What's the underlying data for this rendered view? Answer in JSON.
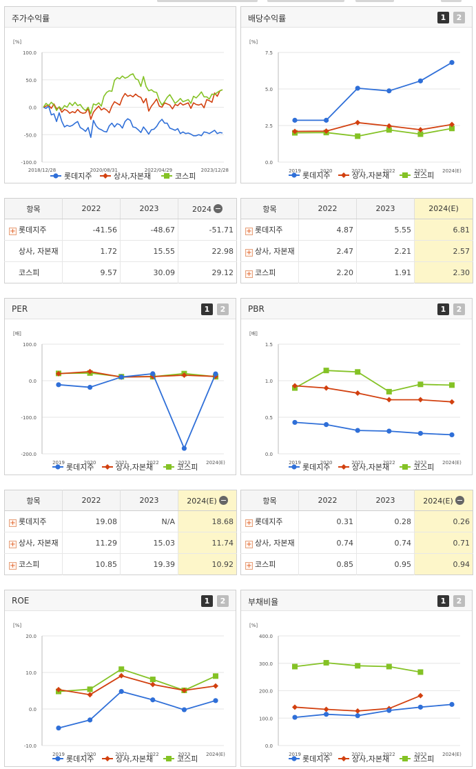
{
  "colors": {
    "lotte": "#2f6fd8",
    "trading": "#d2400f",
    "kospi": "#84c225"
  },
  "series_names": [
    "롯데지주",
    "상사,자본재",
    "코스피"
  ],
  "panels": [
    {
      "id": "stock-return",
      "title": "주가수익률",
      "pager": false,
      "chart_data": {
        "type": "line",
        "unit": "[%]",
        "yticks": [
          "100.0",
          "50.0",
          "0.0",
          "-50.0",
          "-100.0"
        ],
        "ylim": [
          -100,
          100
        ],
        "xtick_labels": [
          "2018/12/28",
          "2020/08/31",
          "2022/04/29",
          "2023/12/28"
        ],
        "x": [
          0,
          4,
          8,
          12,
          16,
          20,
          24,
          28,
          32,
          36,
          40,
          44,
          48,
          52,
          56,
          60,
          64,
          68,
          72,
          76,
          80,
          84,
          88,
          92,
          96,
          100,
          104,
          108,
          112,
          116,
          120,
          124,
          128,
          132,
          136,
          140,
          144,
          148,
          152,
          156,
          160,
          164,
          168,
          172,
          176,
          180,
          184,
          188,
          192,
          196,
          200,
          204,
          208,
          212,
          216,
          220,
          224,
          228,
          232,
          236,
          240,
          244,
          248,
          252,
          256,
          260,
          264,
          268,
          272
        ],
        "series": [
          {
            "name": "롯데지주",
            "values": [
              0,
              -2,
              2,
              -14,
              -12,
              -26,
              -10,
              -26,
              -36,
              -33,
              -35,
              -33,
              -29,
              -26,
              -37,
              -40,
              -44,
              -37,
              -55,
              -24,
              -34,
              -39,
              -41,
              -44,
              -45,
              -34,
              -29,
              -36,
              -30,
              -32,
              -38,
              -26,
              -21,
              -24,
              -36,
              -37,
              -41,
              -46,
              -36,
              -42,
              -49,
              -41,
              -40,
              -35,
              -27,
              -22,
              -29,
              -29,
              -38,
              -40,
              -42,
              -39,
              -48,
              -45,
              -48,
              -47,
              -49,
              -52,
              -52,
              -50,
              -52,
              -45,
              -46,
              -48,
              -45,
              -42,
              -48,
              -46,
              -47
            ]
          },
          {
            "name": "상사,자본재",
            "values": [
              0,
              2,
              4,
              -2,
              6,
              -3,
              0,
              -9,
              -4,
              -6,
              -11,
              -8,
              -10,
              -4,
              -9,
              -11,
              -10,
              -2,
              -22,
              -9,
              -3,
              2,
              -5,
              -2,
              -5,
              -10,
              2,
              10,
              7,
              4,
              17,
              25,
              20,
              22,
              19,
              24,
              20,
              18,
              8,
              16,
              -7,
              2,
              8,
              15,
              2,
              0,
              8,
              6,
              4,
              -3,
              5,
              3,
              8,
              4,
              6,
              8,
              -2,
              8,
              5,
              4,
              6,
              -1,
              14,
              12,
              9,
              26,
              20,
              30,
              32
            ]
          },
          {
            "name": "코스피",
            "values": [
              0,
              7,
              3,
              9,
              4,
              -6,
              1,
              -4,
              3,
              0,
              8,
              3,
              9,
              3,
              5,
              -2,
              -6,
              0,
              -12,
              6,
              4,
              8,
              2,
              20,
              27,
              30,
              29,
              49,
              54,
              52,
              57,
              53,
              55,
              59,
              61,
              52,
              50,
              38,
              56,
              38,
              30,
              32,
              28,
              27,
              13,
              4,
              10,
              18,
              23,
              15,
              7,
              11,
              16,
              10,
              12,
              14,
              7,
              20,
              17,
              22,
              28,
              19,
              19,
              15,
              24,
              23,
              27,
              30,
              32
            ]
          }
        ]
      }
    },
    {
      "id": "dividend-yield",
      "title": "배당수익률",
      "pager": true,
      "chart_data": {
        "type": "line",
        "unit": "[%]",
        "yticks": [
          "7.5",
          "5.0",
          "2.5",
          "0.0"
        ],
        "ylim": [
          0,
          7.5
        ],
        "categories": [
          "2019",
          "2020",
          "2021",
          "2022",
          "2023",
          "2024(E)"
        ],
        "series": [
          {
            "name": "롯데지주",
            "values": [
              2.86,
              2.86,
              5.05,
              4.87,
              5.55,
              6.81
            ]
          },
          {
            "name": "상사,자본재",
            "values": [
              2.1,
              2.12,
              2.7,
              2.47,
              2.21,
              2.57
            ]
          },
          {
            "name": "코스피",
            "values": [
              2.0,
              2.02,
              1.77,
              2.2,
              1.91,
              2.3
            ]
          }
        ]
      }
    },
    {
      "id": "per",
      "title": "PER",
      "pager": true,
      "chart_data": {
        "type": "line",
        "unit": "[배]",
        "yticks": [
          "100.0",
          "0.0",
          "-100.0",
          "-200.0"
        ],
        "ylim": [
          -200,
          100
        ],
        "categories": [
          "2019",
          "2020",
          "2021",
          "2022",
          "2023",
          "2024(E)"
        ],
        "series": [
          {
            "name": "롯데지주",
            "values": [
              -11,
              -18,
              10,
              19.08,
              -185,
              18.68
            ]
          },
          {
            "name": "상사,자본재",
            "values": [
              19,
              25,
              10,
              11.29,
              15.03,
              11.74
            ]
          },
          {
            "name": "코스피",
            "values": [
              20,
              21,
              11,
              10.85,
              19.39,
              10.92
            ]
          }
        ]
      }
    },
    {
      "id": "pbr",
      "title": "PBR",
      "pager": true,
      "chart_data": {
        "type": "line",
        "unit": "[배]",
        "yticks": [
          "1.5",
          "1.0",
          "0.5",
          "0.0"
        ],
        "ylim": [
          0,
          1.5
        ],
        "categories": [
          "2019",
          "2020",
          "2021",
          "2022",
          "2023",
          "2024(E)"
        ],
        "series": [
          {
            "name": "롯데지주",
            "values": [
              0.43,
              0.4,
              0.32,
              0.31,
              0.28,
              0.26
            ]
          },
          {
            "name": "상사,자본재",
            "values": [
              0.93,
              0.9,
              0.83,
              0.74,
              0.74,
              0.71
            ]
          },
          {
            "name": "코스피",
            "values": [
              0.9,
              1.14,
              1.12,
              0.85,
              0.95,
              0.94
            ]
          }
        ]
      }
    },
    {
      "id": "roe",
      "title": "ROE",
      "pager": true,
      "chart_data": {
        "type": "line",
        "unit": "[%]",
        "yticks": [
          "20.0",
          "10.0",
          "0.0",
          "-10.0"
        ],
        "ylim": [
          -10,
          20
        ],
        "categories": [
          "2019",
          "2020",
          "2021",
          "2022",
          "2023",
          "2024(E)"
        ],
        "series": [
          {
            "name": "롯데지주",
            "values": [
              -5.2,
              -3.0,
              4.8,
              2.5,
              -0.2,
              2.3
            ]
          },
          {
            "name": "상사,자본재",
            "values": [
              5.3,
              3.9,
              9.1,
              6.7,
              5.1,
              6.3
            ]
          },
          {
            "name": "코스피",
            "values": [
              4.8,
              5.4,
              10.9,
              8.1,
              5.1,
              9.0
            ]
          }
        ]
      }
    },
    {
      "id": "debt-ratio",
      "title": "부채비율",
      "pager": true,
      "chart_data": {
        "type": "line",
        "unit": "[%]",
        "yticks": [
          "400.0",
          "300.0",
          "200.0",
          "100.0",
          "0.0"
        ],
        "ylim": [
          0,
          400
        ],
        "categories": [
          "2019",
          "2020",
          "2021",
          "2022",
          "2023",
          "2024(E)"
        ],
        "series": [
          {
            "name": "롯데지주",
            "values": [
              103,
              114,
              109,
              128,
              140,
              150
            ]
          },
          {
            "name": "상사,자본재",
            "values": [
              140,
              132,
              126,
              135,
              182,
              null
            ]
          },
          {
            "name": "코스피",
            "values": [
              288,
              302,
              291,
              288,
              268,
              null
            ]
          }
        ]
      }
    }
  ],
  "tables": [
    {
      "id": "stock-return-table",
      "headers": [
        "항목",
        "2022",
        "2023",
        "2024"
      ],
      "minus_on_last": true,
      "hl_last": false,
      "rows": [
        {
          "name": "롯데지주",
          "plus": true,
          "values": [
            "-41.56",
            "-48.67",
            "-51.71"
          ]
        },
        {
          "name": "상사, 자본재",
          "plus": false,
          "values": [
            "1.72",
            "15.55",
            "22.98"
          ]
        },
        {
          "name": "코스피",
          "plus": false,
          "values": [
            "9.57",
            "30.09",
            "29.12"
          ]
        }
      ]
    },
    {
      "id": "dividend-yield-table",
      "headers": [
        "항목",
        "2022",
        "2023",
        "2024(E)"
      ],
      "minus_on_last": false,
      "hl_last": true,
      "rows": [
        {
          "name": "롯데지주",
          "plus": true,
          "values": [
            "4.87",
            "5.55",
            "6.81"
          ]
        },
        {
          "name": "상사, 자본재",
          "plus": true,
          "values": [
            "2.47",
            "2.21",
            "2.57"
          ]
        },
        {
          "name": "코스피",
          "plus": true,
          "values": [
            "2.20",
            "1.91",
            "2.30"
          ]
        }
      ]
    },
    {
      "id": "per-table",
      "headers": [
        "항목",
        "2022",
        "2023",
        "2024(E)"
      ],
      "minus_on_last": true,
      "hl_last": true,
      "rows": [
        {
          "name": "롯데지주",
          "plus": true,
          "values": [
            "19.08",
            "N/A",
            "18.68"
          ]
        },
        {
          "name": "상사, 자본재",
          "plus": true,
          "values": [
            "11.29",
            "15.03",
            "11.74"
          ]
        },
        {
          "name": "코스피",
          "plus": true,
          "values": [
            "10.85",
            "19.39",
            "10.92"
          ]
        }
      ]
    },
    {
      "id": "pbr-table",
      "headers": [
        "항목",
        "2022",
        "2023",
        "2024(E)"
      ],
      "minus_on_last": true,
      "hl_last": true,
      "rows": [
        {
          "name": "롯데지주",
          "plus": true,
          "values": [
            "0.31",
            "0.28",
            "0.26"
          ]
        },
        {
          "name": "상사, 자본재",
          "plus": true,
          "values": [
            "0.74",
            "0.74",
            "0.71"
          ]
        },
        {
          "name": "코스피",
          "plus": true,
          "values": [
            "0.85",
            "0.95",
            "0.94"
          ]
        }
      ]
    }
  ]
}
